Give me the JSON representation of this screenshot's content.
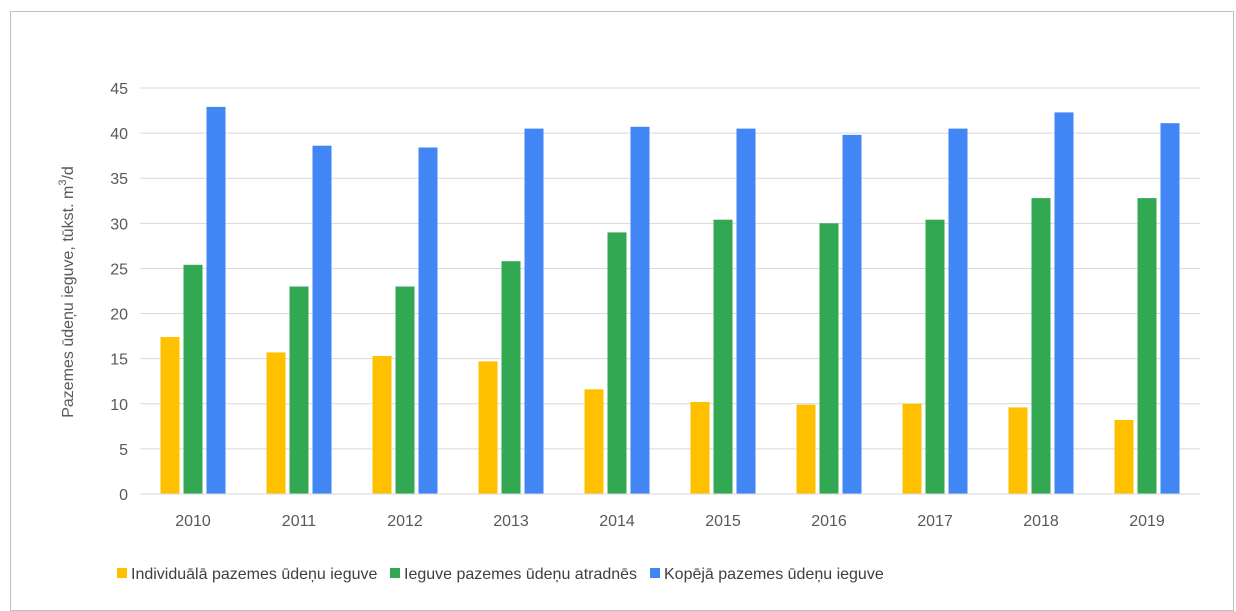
{
  "chart_data": {
    "type": "bar",
    "ylabel_main": "Pazemes ūdeņu ieguve, tūkst. m",
    "ylabel_sup": "3",
    "ylabel_tail": "/d",
    "ylim": [
      0,
      45
    ],
    "yticks": [
      0,
      5,
      10,
      15,
      20,
      25,
      30,
      35,
      40,
      45
    ],
    "grid": true,
    "legend_position": "bottom",
    "categories": [
      "2010",
      "2011",
      "2012",
      "2013",
      "2014",
      "2015",
      "2016",
      "2017",
      "2018",
      "2019"
    ],
    "series": [
      {
        "name": "Individuālā pazemes ūdeņu ieguve",
        "color": "#FFC000",
        "values": [
          17.4,
          15.7,
          15.3,
          14.7,
          11.6,
          10.2,
          9.9,
          10.0,
          9.6,
          8.2
        ]
      },
      {
        "name": "Ieguve pazemes ūdeņu atradnēs",
        "color": "#33A853",
        "values": [
          25.4,
          23.0,
          23.0,
          25.8,
          29.0,
          30.4,
          30.0,
          30.4,
          32.8,
          32.8
        ]
      },
      {
        "name": "Kopējā pazemes ūdeņu ieguve",
        "color": "#4285F4",
        "values": [
          42.9,
          38.6,
          38.4,
          40.5,
          40.7,
          40.5,
          39.8,
          40.5,
          42.3,
          41.1
        ]
      }
    ]
  }
}
